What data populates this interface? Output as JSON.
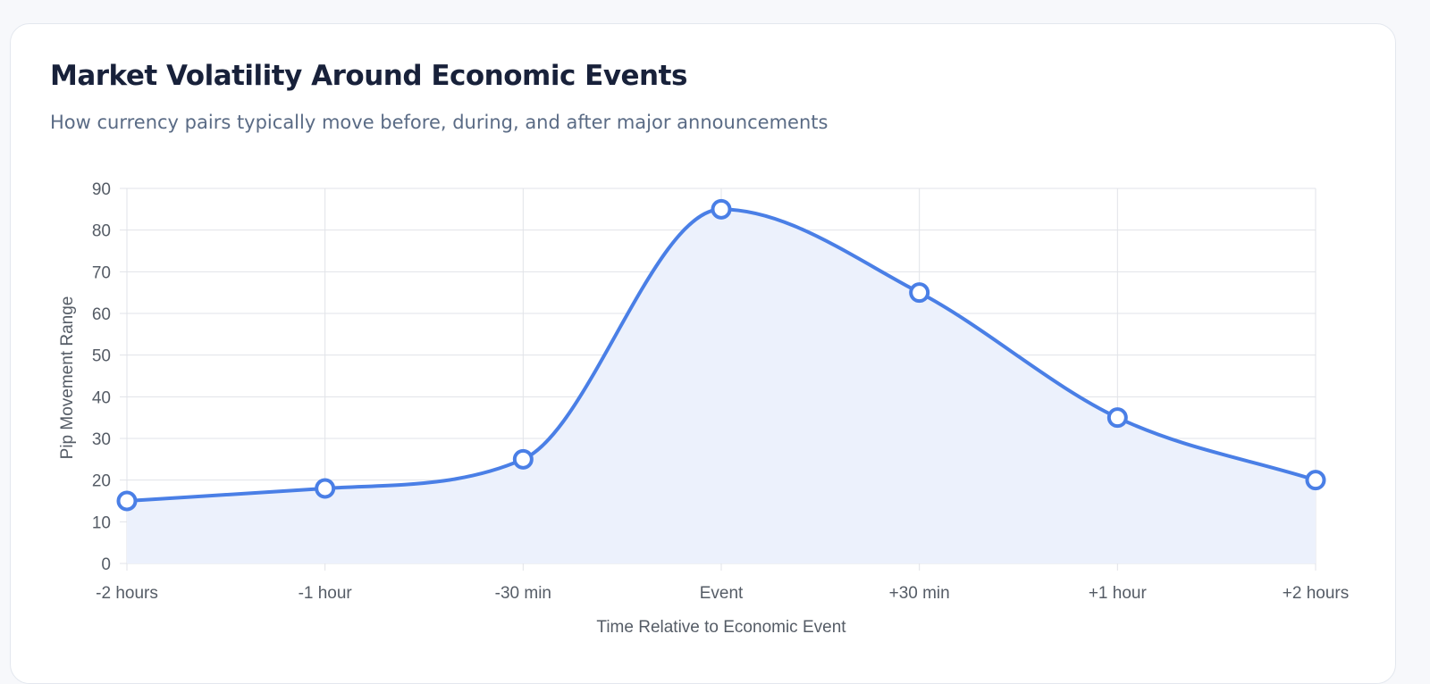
{
  "card": {
    "title": "Market Volatility Around Economic Events",
    "subtitle": "How currency pairs typically move before, during, and after major announcements"
  },
  "colors": {
    "line": "#4a7fe6",
    "fill": "#ecf1fc",
    "grid": "#e1e3e8",
    "axis_text": "#555c66"
  },
  "chart_data": {
    "type": "area",
    "categories": [
      "-2 hours",
      "-1 hour",
      "-30 min",
      "Event",
      "+30 min",
      "+1 hour",
      "+2 hours"
    ],
    "series": [
      {
        "values": [
          15,
          18,
          25,
          85,
          65,
          35,
          20
        ]
      }
    ],
    "xlabel": "Time Relative to Economic Event",
    "ylabel": "Pip Movement Range",
    "ylim": [
      0,
      90
    ],
    "yticks": [
      0,
      10,
      20,
      30,
      40,
      50,
      60,
      70,
      80,
      90
    ],
    "grid": true,
    "smooth": true,
    "markers": "hollow-circle"
  }
}
